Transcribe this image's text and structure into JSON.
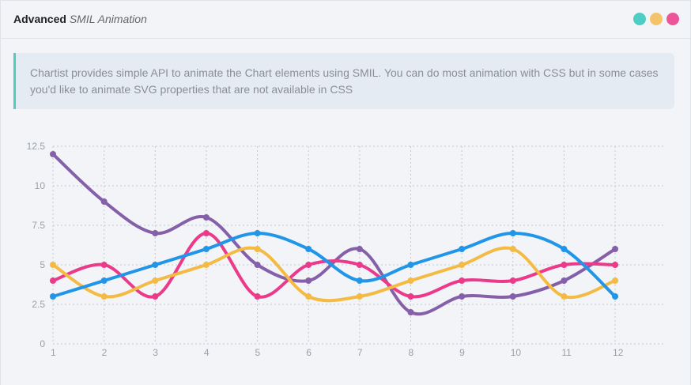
{
  "header": {
    "title_bold": "Advanced",
    "title_italic": "SMIL Animation",
    "dots": [
      "#4ecdc4",
      "#f4c46a",
      "#ec5598"
    ]
  },
  "callout": {
    "text": "Chartist provides simple API to animate the Chart elements using SMIL. You can do most animation with CSS but in some cases you'd like to animate SVG properties that are not available in CSS"
  },
  "chart_data": {
    "type": "line",
    "x": [
      "1",
      "2",
      "3",
      "4",
      "5",
      "6",
      "7",
      "8",
      "9",
      "10",
      "11",
      "12"
    ],
    "yticks": [
      "0",
      "2.5",
      "5",
      "7.5",
      "10",
      "12.5"
    ],
    "ylim": [
      0,
      12.5
    ],
    "grid": true,
    "series": [
      {
        "name": "series-a",
        "color": "#8560a8",
        "values": [
          12,
          9,
          7,
          8,
          5,
          4,
          6,
          2,
          3,
          3,
          4,
          6
        ]
      },
      {
        "name": "series-b",
        "color": "#ec3a8b",
        "values": [
          4,
          5,
          3,
          7,
          3,
          5,
          5,
          3,
          4,
          4,
          5,
          5
        ]
      },
      {
        "name": "series-c",
        "color": "#f4bb44",
        "values": [
          5,
          3,
          4,
          5,
          6,
          3,
          3,
          4,
          5,
          6,
          3,
          4
        ]
      },
      {
        "name": "series-d",
        "color": "#2196e8",
        "values": [
          3,
          4,
          5,
          6,
          7,
          6,
          4,
          5,
          6,
          7,
          6,
          3
        ]
      }
    ]
  }
}
